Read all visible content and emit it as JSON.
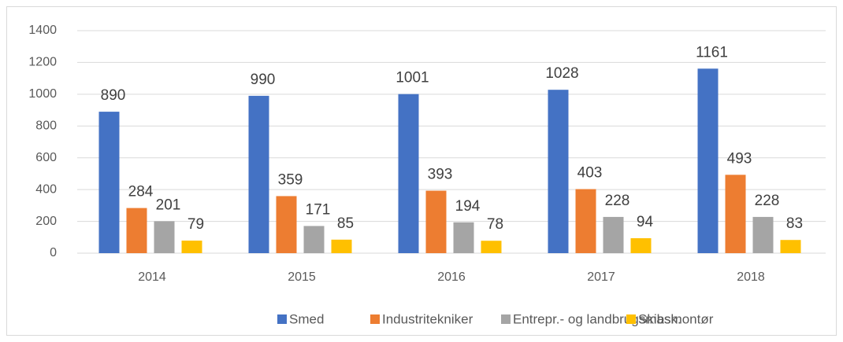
{
  "chart_data": {
    "type": "bar",
    "categories": [
      "2014",
      "2015",
      "2016",
      "2017",
      "2018"
    ],
    "series": [
      {
        "name": "Smed",
        "color": "#4472c4",
        "values": [
          890,
          990,
          1001,
          1028,
          1161
        ]
      },
      {
        "name": "Industritekniker",
        "color": "#ed7d31",
        "values": [
          284,
          359,
          393,
          403,
          493
        ]
      },
      {
        "name": "Entrepr.- og landbrugsmask.",
        "color": "#a5a5a5",
        "values": [
          201,
          171,
          194,
          228,
          228
        ]
      },
      {
        "name": "Skibsmontør",
        "color": "#ffc000",
        "values": [
          79,
          85,
          78,
          94,
          83
        ]
      }
    ],
    "ylim": [
      0,
      1400
    ],
    "yticks": [
      0,
      200,
      400,
      600,
      800,
      1000,
      1200,
      1400
    ],
    "grid": true,
    "legend": "bottom"
  }
}
